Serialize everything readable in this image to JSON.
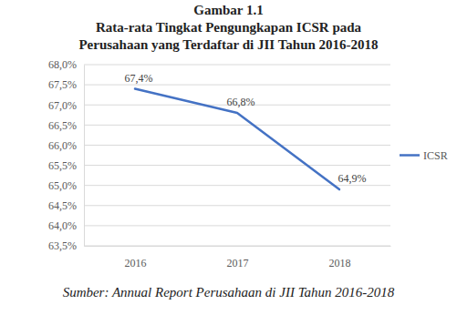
{
  "chart_data": {
    "type": "line",
    "title": "Gambar 1.1",
    "subtitle": [
      "Rata-rata Tingkat Pengungkapan ICSR pada",
      "Perusahaan yang Terdaftar di JII Tahun 2016-2018"
    ],
    "annotations": [
      "Sumber: Annual Report Perusahaan di JII Tahun 2016-2018"
    ],
    "categories": [
      "2016",
      "2017",
      "2018"
    ],
    "series": [
      {
        "name": "ICSR",
        "color": "#4472c4",
        "values": [
          67.4,
          66.8,
          64.9
        ],
        "value_labels": [
          "67,4%",
          "66,8%",
          "64,9%"
        ]
      }
    ],
    "ylim": [
      63.5,
      68.0
    ],
    "yticks": [
      {
        "value": 63.5,
        "label": "63,5%"
      },
      {
        "value": 64.0,
        "label": "64,0%"
      },
      {
        "value": 64.5,
        "label": "64,5%"
      },
      {
        "value": 65.0,
        "label": "65,0%"
      },
      {
        "value": 65.5,
        "label": "65,5%"
      },
      {
        "value": 66.0,
        "label": "66,0%"
      },
      {
        "value": 66.5,
        "label": "66,5%"
      },
      {
        "value": 67.0,
        "label": "67,0%"
      },
      {
        "value": 67.5,
        "label": "67,5%"
      },
      {
        "value": 68.0,
        "label": "68,0%"
      }
    ],
    "grid": true,
    "legend": "right",
    "data_labels": true
  }
}
